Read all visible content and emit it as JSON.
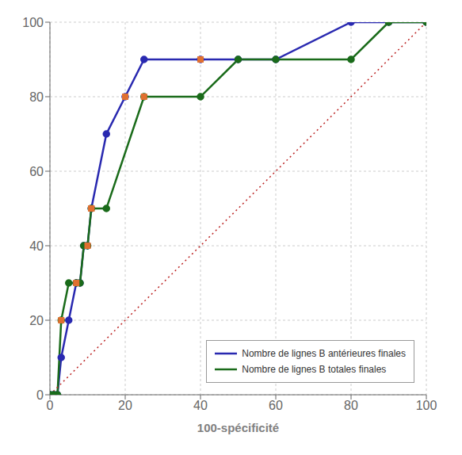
{
  "chart_data": {
    "type": "line",
    "xlabel": "100-spécificité",
    "xlim": [
      0,
      100
    ],
    "ylim": [
      0,
      100
    ],
    "xticks": [
      0,
      20,
      40,
      60,
      80,
      100
    ],
    "yticks": [
      0,
      20,
      40,
      60,
      80,
      100
    ],
    "grid": true,
    "legend": "lower right",
    "series": [
      {
        "name": "Nombre de lignes B antérieures finales",
        "color": "#2929b0",
        "marker": "circle",
        "x": [
          0,
          1,
          2,
          3,
          5,
          7,
          8,
          9,
          10,
          11,
          15,
          20,
          25,
          40,
          50,
          60,
          80,
          90,
          100
        ],
        "values": [
          0,
          0,
          0,
          10,
          20,
          30,
          30,
          40,
          40,
          50,
          70,
          80,
          90,
          90,
          90,
          90,
          100,
          100,
          100
        ]
      },
      {
        "name": "Nombre de lignes B totales finales",
        "color": "#1a6b1a",
        "marker": "circle",
        "x": [
          0,
          1,
          2,
          3,
          5,
          7,
          8,
          9,
          10,
          11,
          15,
          25,
          40,
          50,
          60,
          80,
          90,
          100
        ],
        "values": [
          0,
          0,
          0,
          20,
          30,
          30,
          30,
          40,
          40,
          50,
          50,
          80,
          80,
          90,
          90,
          90,
          100,
          100
        ]
      },
      {
        "color": "#bb2222",
        "line_style": "dotted",
        "x": [
          0,
          100
        ],
        "values": [
          0,
          100
        ]
      },
      {
        "type": "scatter",
        "color": "#e07030",
        "marker": "square",
        "x": [
          7,
          11,
          20,
          40
        ],
        "values": [
          30,
          50,
          80,
          90
        ]
      },
      {
        "type": "scatter",
        "color": "#e07030",
        "marker": "square",
        "x": [
          3,
          10,
          11,
          25
        ],
        "values": [
          20,
          40,
          50,
          80
        ]
      }
    ]
  }
}
